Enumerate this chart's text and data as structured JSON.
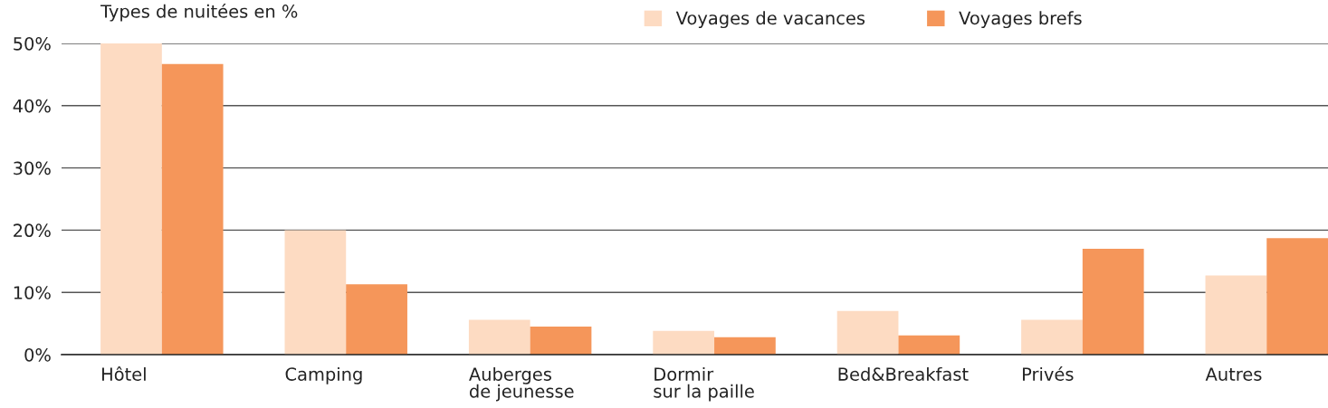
{
  "chart_data": {
    "type": "bar",
    "title": "Types de nuitées en %",
    "categories": [
      "Hôtel",
      "Camping",
      "Auberges\nde jeunesse",
      "Dormir\nsur la paille",
      "Bed&Breakfast",
      "Privés",
      "Autres"
    ],
    "series": [
      {
        "name": "Voyages de vacances",
        "color": "#fddbc2",
        "values": [
          50.0,
          20.0,
          5.6,
          3.8,
          7.0,
          5.6,
          12.7
        ]
      },
      {
        "name": "Voyages brefs",
        "color": "#f5965a",
        "values": [
          46.7,
          11.3,
          4.5,
          2.8,
          3.1,
          17.0,
          18.7
        ]
      }
    ],
    "ylim": [
      0,
      50
    ],
    "yticks": [
      {
        "value": 0,
        "label": "0%"
      },
      {
        "value": 10,
        "label": "10%"
      },
      {
        "value": 20,
        "label": "20%"
      },
      {
        "value": 30,
        "label": "30%"
      },
      {
        "value": 40,
        "label": "40%"
      },
      {
        "value": 50,
        "label": "50%"
      }
    ],
    "grid": "y",
    "legend": "top"
  }
}
